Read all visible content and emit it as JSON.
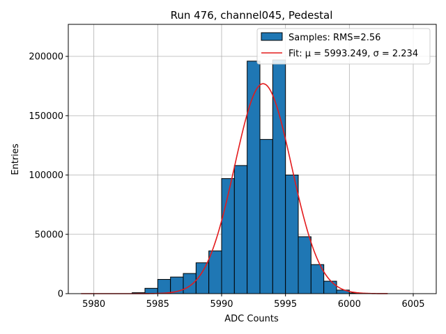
{
  "chart_data": {
    "type": "bar",
    "title": "Run 476, channel045, Pedestal",
    "xlabel": "ADC Counts",
    "ylabel": "Entries",
    "xlim": [
      5978,
      6006.8
    ],
    "ylim": [
      0,
      227000
    ],
    "x_ticks": [
      5980,
      5985,
      5990,
      5995,
      6000,
      6005
    ],
    "x_tick_labels": [
      "5980",
      "5985",
      "5990",
      "5995",
      "6000",
      "6005"
    ],
    "y_ticks": [
      0,
      50000,
      100000,
      150000,
      200000
    ],
    "y_tick_labels": [
      "0",
      "50000",
      "100000",
      "150000",
      "200000"
    ],
    "grid": true,
    "bin_width": 1,
    "bins": [
      {
        "left": 5983,
        "value": 800
      },
      {
        "left": 5984,
        "value": 4500
      },
      {
        "left": 5985,
        "value": 12000
      },
      {
        "left": 5986,
        "value": 14000
      },
      {
        "left": 5987,
        "value": 17000
      },
      {
        "left": 5988,
        "value": 26000
      },
      {
        "left": 5989,
        "value": 36000
      },
      {
        "left": 5990,
        "value": 97000
      },
      {
        "left": 5991,
        "value": 108000
      },
      {
        "left": 5992,
        "value": 196000
      },
      {
        "left": 5993,
        "value": 130000
      },
      {
        "left": 5994,
        "value": 197000
      },
      {
        "left": 5995,
        "value": 100000
      },
      {
        "left": 5996,
        "value": 48000
      },
      {
        "left": 5997,
        "value": 24500
      },
      {
        "left": 5998,
        "value": 10500
      },
      {
        "left": 5999,
        "value": 3000
      },
      {
        "left": 6000,
        "value": 600
      }
    ],
    "fit": {
      "mu": 5993.249,
      "sigma": 2.234,
      "amplitude": 177000,
      "x_range": [
        5979,
        6003
      ]
    },
    "legend": {
      "position": "top-right",
      "entries": [
        {
          "label": "Samples: RMS=2.56",
          "kind": "patch",
          "color": "#1f77b4"
        },
        {
          "label": "Fit: μ = 5993.249, σ = 2.234",
          "kind": "line",
          "color": "#e31a1c"
        }
      ]
    },
    "colors": {
      "bar": "#1f77b4",
      "bar_edge": "#000000",
      "fit": "#e31a1c",
      "grid": "#b0b0b0"
    }
  }
}
